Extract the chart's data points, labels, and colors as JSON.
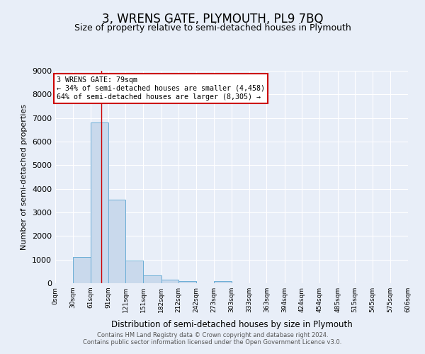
{
  "title": "3, WRENS GATE, PLYMOUTH, PL9 7BQ",
  "subtitle": "Size of property relative to semi-detached houses in Plymouth",
  "xlabel": "Distribution of semi-detached houses by size in Plymouth",
  "ylabel": "Number of semi-detached properties",
  "bar_labels": [
    "0sqm",
    "30sqm",
    "61sqm",
    "91sqm",
    "121sqm",
    "151sqm",
    "182sqm",
    "212sqm",
    "242sqm",
    "273sqm",
    "303sqm",
    "333sqm",
    "363sqm",
    "394sqm",
    "424sqm",
    "454sqm",
    "485sqm",
    "515sqm",
    "545sqm",
    "575sqm",
    "606sqm"
  ],
  "bar_values": [
    0,
    1100,
    6820,
    3530,
    960,
    330,
    145,
    100,
    0,
    90,
    0,
    0,
    0,
    0,
    0,
    0,
    0,
    0,
    0,
    0
  ],
  "bar_color": "#c9d9ec",
  "bar_edge_color": "#6baed6",
  "ylim": [
    0,
    9000
  ],
  "yticks": [
    0,
    1000,
    2000,
    3000,
    4000,
    5000,
    6000,
    7000,
    8000,
    9000
  ],
  "property_line_x": 79,
  "property_line_color": "#cc0000",
  "bin_edges": [
    0,
    30,
    61,
    91,
    121,
    151,
    182,
    212,
    242,
    273,
    303,
    333,
    363,
    394,
    424,
    454,
    485,
    515,
    545,
    575,
    606
  ],
  "annotation_title": "3 WRENS GATE: 79sqm",
  "annotation_line1": "← 34% of semi-detached houses are smaller (4,458)",
  "annotation_line2": "64% of semi-detached houses are larger (8,305) →",
  "annotation_box_color": "#ffffff",
  "annotation_box_edge_color": "#cc0000",
  "footer_line1": "Contains HM Land Registry data © Crown copyright and database right 2024.",
  "footer_line2": "Contains public sector information licensed under the Open Government Licence v3.0.",
  "background_color": "#e8eef8",
  "grid_color": "#ffffff",
  "title_fontsize": 12,
  "subtitle_fontsize": 9
}
